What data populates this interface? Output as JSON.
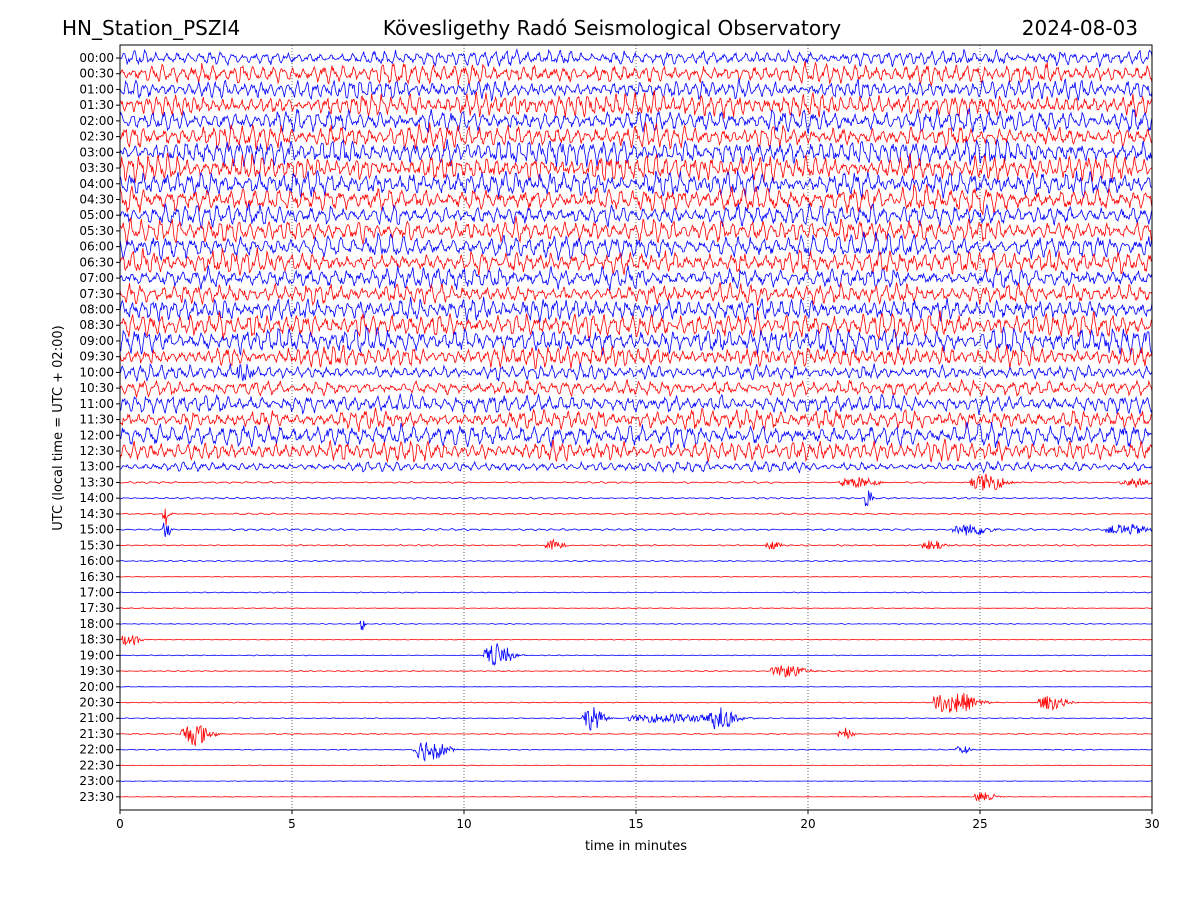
{
  "header": {
    "station": "HN_Station_PSZI4",
    "observatory": "Kövesligethy Radó Seismological Observatory",
    "date": "2024-08-03"
  },
  "chart_data": {
    "type": "line",
    "title": "Kövesligethy Radó Seismological Observatory",
    "xlabel": "time in minutes",
    "ylabel": "UTC (local time = UTC + 02:00)",
    "xlim": [
      0,
      30
    ],
    "x_ticks": [
      "0",
      "5",
      "10",
      "15",
      "20",
      "25",
      "30"
    ],
    "grid": "vertical dotted at major x ticks",
    "row_labels": [
      "00:00",
      "00:30",
      "01:00",
      "01:30",
      "02:00",
      "02:30",
      "03:00",
      "03:30",
      "04:00",
      "04:30",
      "05:00",
      "05:30",
      "06:00",
      "06:30",
      "07:00",
      "07:30",
      "08:00",
      "08:30",
      "09:00",
      "09:30",
      "10:00",
      "10:30",
      "11:00",
      "11:30",
      "12:00",
      "12:30",
      "13:00",
      "13:30",
      "14:00",
      "14:30",
      "15:00",
      "15:30",
      "16:00",
      "16:30",
      "17:00",
      "17:30",
      "18:00",
      "18:30",
      "19:00",
      "19:30",
      "20:00",
      "20:30",
      "21:00",
      "21:30",
      "22:00",
      "22:30",
      "23:00",
      "23:30"
    ],
    "row_amplitude": [
      0.6,
      0.8,
      0.8,
      0.9,
      0.9,
      0.9,
      1.0,
      1.0,
      1.0,
      1.0,
      0.9,
      0.9,
      0.9,
      0.9,
      0.8,
      0.8,
      0.9,
      1.0,
      1.0,
      0.8,
      0.6,
      0.6,
      0.7,
      0.8,
      0.9,
      0.8,
      0.4,
      0.07,
      0.07,
      0.06,
      0.08,
      0.06,
      0.05,
      0.03,
      0.04,
      0.03,
      0.04,
      0.03,
      0.04,
      0.04,
      0.02,
      0.04,
      0.04,
      0.04,
      0.04,
      0.03,
      0.02,
      0.02
    ],
    "events": [
      {
        "row": 20,
        "minute": 3.4,
        "strength": 0.5,
        "duration": 0.8
      },
      {
        "row": 27,
        "minute": 21.2,
        "strength": 0.5,
        "duration": 1.0
      },
      {
        "row": 27,
        "minute": 25.0,
        "strength": 0.7,
        "duration": 1.0
      },
      {
        "row": 27,
        "minute": 29.3,
        "strength": 0.4,
        "duration": 0.8
      },
      {
        "row": 28,
        "minute": 21.7,
        "strength": 1.0,
        "duration": 0.2
      },
      {
        "row": 29,
        "minute": 1.3,
        "strength": 1.0,
        "duration": 0.2
      },
      {
        "row": 30,
        "minute": 1.3,
        "strength": 1.0,
        "duration": 0.2
      },
      {
        "row": 30,
        "minute": 24.5,
        "strength": 0.5,
        "duration": 1.0
      },
      {
        "row": 30,
        "minute": 29.0,
        "strength": 0.5,
        "duration": 1.2
      },
      {
        "row": 31,
        "minute": 12.5,
        "strength": 0.5,
        "duration": 0.5
      },
      {
        "row": 31,
        "minute": 18.9,
        "strength": 0.5,
        "duration": 0.4
      },
      {
        "row": 31,
        "minute": 23.5,
        "strength": 0.5,
        "duration": 0.6
      },
      {
        "row": 36,
        "minute": 7.0,
        "strength": 1.0,
        "duration": 0.15
      },
      {
        "row": 37,
        "minute": 0.2,
        "strength": 0.6,
        "duration": 0.5
      },
      {
        "row": 38,
        "minute": 10.8,
        "strength": 1.0,
        "duration": 0.8
      },
      {
        "row": 39,
        "minute": 19.2,
        "strength": 0.5,
        "duration": 1.0
      },
      {
        "row": 41,
        "minute": 24.0,
        "strength": 1.0,
        "duration": 1.2
      },
      {
        "row": 41,
        "minute": 26.9,
        "strength": 0.6,
        "duration": 0.8
      },
      {
        "row": 42,
        "minute": 13.6,
        "strength": 1.0,
        "duration": 0.6
      },
      {
        "row": 42,
        "minute": 15.5,
        "strength": 0.4,
        "duration": 2.5
      },
      {
        "row": 42,
        "minute": 17.3,
        "strength": 1.0,
        "duration": 0.8
      },
      {
        "row": 43,
        "minute": 2.0,
        "strength": 1.0,
        "duration": 0.8
      },
      {
        "row": 43,
        "minute": 21.0,
        "strength": 0.5,
        "duration": 0.4
      },
      {
        "row": 44,
        "minute": 8.8,
        "strength": 1.0,
        "duration": 0.9
      },
      {
        "row": 44,
        "minute": 24.4,
        "strength": 0.4,
        "duration": 0.4
      },
      {
        "row": 47,
        "minute": 25.0,
        "strength": 0.5,
        "duration": 0.6
      }
    ],
    "series": [
      {
        "name": "even rows",
        "color": "#0000ff"
      },
      {
        "name": "odd rows",
        "color": "#ff0000"
      }
    ]
  }
}
